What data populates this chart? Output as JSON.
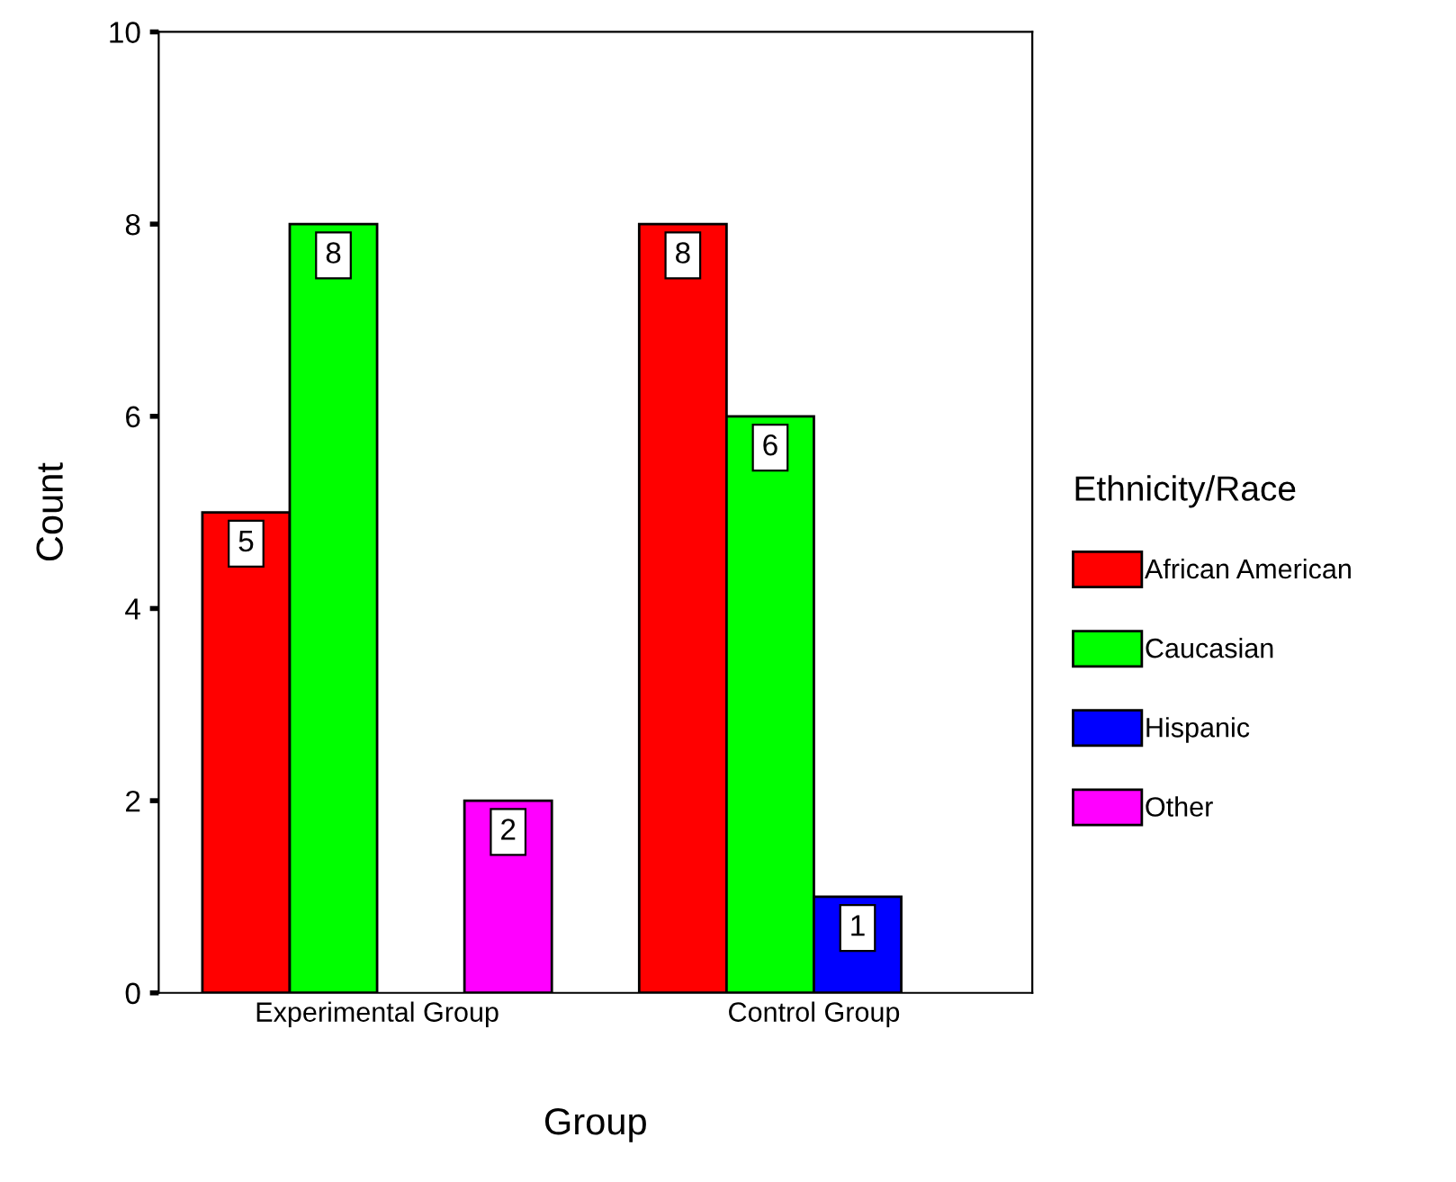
{
  "chart_data": {
    "type": "bar",
    "xlabel": "Group",
    "ylabel": "Count",
    "legend_title": "Ethnicity/Race",
    "categories": [
      "Experimental Group",
      "Control Group"
    ],
    "series": [
      {
        "name": "African American",
        "color": "#ff0000",
        "values": [
          5,
          8
        ]
      },
      {
        "name": "Caucasian",
        "color": "#00ff00",
        "values": [
          8,
          6
        ]
      },
      {
        "name": "Hispanic",
        "color": "#0000ff",
        "values": [
          null,
          1
        ]
      },
      {
        "name": "Other",
        "color": "#ff00ff",
        "values": [
          2,
          null
        ]
      }
    ],
    "ylim": [
      0,
      10
    ],
    "yticks": [
      0,
      2,
      4,
      6,
      8,
      10
    ],
    "grid": false,
    "legend": "right",
    "data_labels": true
  }
}
